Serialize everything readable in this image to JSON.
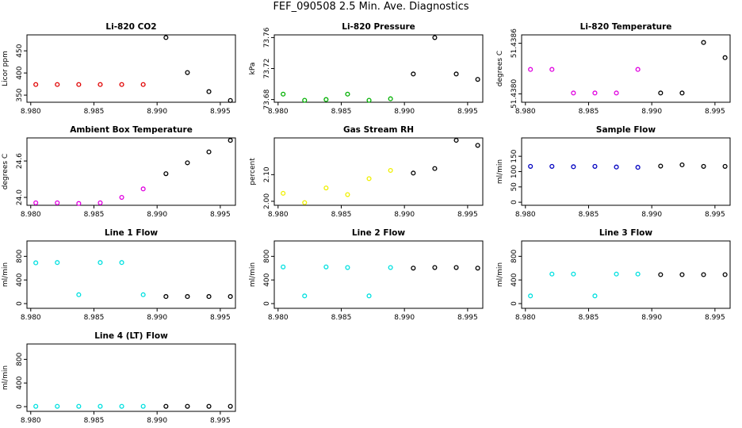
{
  "title": "FEF_090508  2.5 Min. Ave. Diagnostics",
  "colors": {
    "black": "#000000",
    "red": "#e00000",
    "green": "#00b000",
    "magenta": "#e000e0",
    "yellow": "#f0f000",
    "blue": "#0000c0",
    "cyan": "#00e0e0"
  },
  "chart_data": [
    {
      "type": "scatter",
      "title": "Li-820 CO2",
      "ylabel": "Licor ppm",
      "x": [
        8.9804,
        8.9821,
        8.9838,
        8.9855,
        8.9872,
        8.9889,
        8.9907,
        8.9924,
        8.9941,
        8.9958
      ],
      "xlim": [
        8.9797,
        8.9962
      ],
      "x_ticks": [
        "8.980",
        "8.985",
        "8.990",
        "8.995"
      ],
      "x_tick_values": [
        8.98,
        8.985,
        8.99,
        8.995
      ],
      "ylim": [
        334,
        486
      ],
      "y_ticks": [
        "350",
        "400",
        "450"
      ],
      "y_tick_values": [
        350,
        400,
        450
      ],
      "values": [
        374,
        374,
        374,
        374,
        374,
        374,
        480,
        401,
        358,
        338
      ],
      "point_colors": [
        "red",
        "red",
        "red",
        "red",
        "red",
        "red",
        "black",
        "black",
        "black",
        "black"
      ]
    },
    {
      "type": "scatter",
      "title": "Li-820 Pressure",
      "ylabel": "kPa",
      "x": [
        8.9804,
        8.9821,
        8.9838,
        8.9855,
        8.9872,
        8.9889,
        8.9907,
        8.9924,
        8.9941,
        8.9958
      ],
      "xlim": [
        8.9797,
        8.9962
      ],
      "x_ticks": [
        "8.980",
        "8.985",
        "8.990",
        "8.995"
      ],
      "x_tick_values": [
        8.98,
        8.985,
        8.99,
        8.995
      ],
      "ylim": [
        73.6765,
        73.7635
      ],
      "y_ticks": [
        "73.68",
        "73.72",
        "73.76"
      ],
      "y_tick_values": [
        73.68,
        73.72,
        73.76
      ],
      "values": [
        73.687,
        73.679,
        73.68,
        73.687,
        73.679,
        73.681,
        73.713,
        73.76,
        73.713,
        73.706
      ],
      "point_colors": [
        "green",
        "green",
        "green",
        "green",
        "green",
        "green",
        "black",
        "black",
        "black",
        "black"
      ]
    },
    {
      "type": "scatter",
      "title": "Li-820 Temperature",
      "ylabel": "degrees C",
      "x": [
        8.9804,
        8.9821,
        8.9838,
        8.9855,
        8.9872,
        8.9889,
        8.9907,
        8.9924,
        8.9941,
        8.9958
      ],
      "xlim": [
        8.9797,
        8.9962
      ],
      "x_ticks": [
        "8.980",
        "8.985",
        "8.990",
        "8.995"
      ],
      "x_tick_values": [
        8.98,
        8.985,
        8.99,
        8.995
      ],
      "ylim": [
        51.4379,
        51.4387
      ],
      "y_ticks": [
        "51.4380",
        "51.4386"
      ],
      "y_tick_values": [
        51.438,
        51.4386
      ],
      "values": [
        51.43829,
        51.43829,
        51.43801,
        51.43801,
        51.43801,
        51.43829,
        51.43801,
        51.43801,
        51.43861,
        51.43843
      ],
      "point_colors": [
        "magenta",
        "magenta",
        "magenta",
        "magenta",
        "magenta",
        "magenta",
        "black",
        "black",
        "black",
        "black"
      ]
    },
    {
      "type": "scatter",
      "title": "Ambient Box Temperature",
      "ylabel": "degrees C",
      "x": [
        8.9804,
        8.9821,
        8.9838,
        8.9855,
        8.9872,
        8.9889,
        8.9907,
        8.9924,
        8.9941,
        8.9958
      ],
      "xlim": [
        8.9797,
        8.9962
      ],
      "x_ticks": [
        "8.980",
        "8.985",
        "8.990",
        "8.995"
      ],
      "x_tick_values": [
        8.98,
        8.985,
        8.99,
        8.995
      ],
      "ylim": [
        23.87,
        24.98
      ],
      "y_ticks": [
        "24.0",
        "24.6"
      ],
      "y_tick_values": [
        24.0,
        24.6
      ],
      "values": [
        23.91,
        23.91,
        23.9,
        23.91,
        24.0,
        24.14,
        24.39,
        24.57,
        24.75,
        24.94
      ],
      "point_colors": [
        "magenta",
        "magenta",
        "magenta",
        "magenta",
        "magenta",
        "magenta",
        "black",
        "black",
        "black",
        "black"
      ]
    },
    {
      "type": "scatter",
      "title": "Gas Stream RH",
      "ylabel": "percent",
      "x": [
        8.9804,
        8.9821,
        8.9838,
        8.9855,
        8.9872,
        8.9889,
        8.9907,
        8.9924,
        8.9941,
        8.9958
      ],
      "xlim": [
        8.9797,
        8.9962
      ],
      "x_ticks": [
        "8.980",
        "8.985",
        "8.990",
        "8.995"
      ],
      "x_tick_values": [
        8.98,
        8.985,
        8.99,
        8.995
      ],
      "ylim": [
        1.985,
        2.238
      ],
      "y_ticks": [
        "2.00",
        "2.10"
      ],
      "y_tick_values": [
        2.0,
        2.1
      ],
      "values": [
        2.03,
        1.995,
        2.05,
        2.025,
        2.085,
        2.116,
        2.106,
        2.123,
        2.229,
        2.21
      ],
      "point_colors": [
        "yellow",
        "yellow",
        "yellow",
        "yellow",
        "yellow",
        "yellow",
        "black",
        "black",
        "black",
        "black"
      ]
    },
    {
      "type": "scatter",
      "title": "Sample Flow",
      "ylabel": "ml/min",
      "x": [
        8.9804,
        8.9821,
        8.9838,
        8.9855,
        8.9872,
        8.9889,
        8.9907,
        8.9924,
        8.9941,
        8.9958
      ],
      "xlim": [
        8.9797,
        8.9962
      ],
      "x_ticks": [
        "8.980",
        "8.985",
        "8.990",
        "8.995"
      ],
      "x_tick_values": [
        8.98,
        8.985,
        8.99,
        8.995
      ],
      "ylim": [
        -10,
        210
      ],
      "y_ticks": [
        "0",
        "50",
        "100",
        "150"
      ],
      "y_tick_values": [
        0,
        50,
        100,
        150
      ],
      "values": [
        117,
        117,
        116,
        117,
        115,
        114,
        118,
        122,
        117,
        117
      ],
      "point_colors": [
        "blue",
        "blue",
        "blue",
        "blue",
        "blue",
        "blue",
        "black",
        "black",
        "black",
        "black"
      ]
    },
    {
      "type": "scatter",
      "title": "Line 1 Flow",
      "ylabel": "ml/min",
      "x": [
        8.9804,
        8.9821,
        8.9838,
        8.9855,
        8.9872,
        8.9889,
        8.9907,
        8.9924,
        8.9941,
        8.9958
      ],
      "xlim": [
        8.9797,
        8.9962
      ],
      "x_ticks": [
        "8.980",
        "8.985",
        "8.990",
        "8.995"
      ],
      "x_tick_values": [
        8.98,
        8.985,
        8.99,
        8.995
      ],
      "ylim": [
        -80,
        1060
      ],
      "y_ticks": [
        "0",
        "400",
        "800"
      ],
      "y_tick_values": [
        0,
        400,
        800
      ],
      "values": [
        690,
        695,
        150,
        695,
        695,
        150,
        120,
        120,
        120,
        120
      ],
      "point_colors": [
        "cyan",
        "cyan",
        "cyan",
        "cyan",
        "cyan",
        "cyan",
        "black",
        "black",
        "black",
        "black"
      ]
    },
    {
      "type": "scatter",
      "title": "Line 2 Flow",
      "ylabel": "ml/min",
      "x": [
        8.9804,
        8.9821,
        8.9838,
        8.9855,
        8.9872,
        8.9889,
        8.9907,
        8.9924,
        8.9941,
        8.9958
      ],
      "xlim": [
        8.9797,
        8.9962
      ],
      "x_ticks": [
        "8.980",
        "8.985",
        "8.990",
        "8.995"
      ],
      "x_tick_values": [
        8.98,
        8.985,
        8.99,
        8.995
      ],
      "ylim": [
        -80,
        1060
      ],
      "y_ticks": [
        "0",
        "400",
        "800"
      ],
      "y_tick_values": [
        0,
        400,
        800
      ],
      "values": [
        620,
        130,
        620,
        610,
        130,
        610,
        600,
        610,
        610,
        600
      ],
      "point_colors": [
        "cyan",
        "cyan",
        "cyan",
        "cyan",
        "cyan",
        "cyan",
        "black",
        "black",
        "black",
        "black"
      ]
    },
    {
      "type": "scatter",
      "title": "Line 3 Flow",
      "ylabel": "ml/min",
      "x": [
        8.9804,
        8.9821,
        8.9838,
        8.9855,
        8.9872,
        8.9889,
        8.9907,
        8.9924,
        8.9941,
        8.9958
      ],
      "xlim": [
        8.9797,
        8.9962
      ],
      "x_ticks": [
        "8.980",
        "8.985",
        "8.990",
        "8.995"
      ],
      "x_tick_values": [
        8.98,
        8.985,
        8.99,
        8.995
      ],
      "ylim": [
        -80,
        1060
      ],
      "y_ticks": [
        "0",
        "400",
        "800"
      ],
      "y_tick_values": [
        0,
        400,
        800
      ],
      "values": [
        130,
        500,
        500,
        130,
        500,
        500,
        490,
        490,
        490,
        490
      ],
      "point_colors": [
        "cyan",
        "cyan",
        "cyan",
        "cyan",
        "cyan",
        "cyan",
        "black",
        "black",
        "black",
        "black"
      ]
    },
    {
      "type": "scatter",
      "title": "Line 4 (LT) Flow",
      "ylabel": "ml/min",
      "x": [
        8.9804,
        8.9821,
        8.9838,
        8.9855,
        8.9872,
        8.9889,
        8.9907,
        8.9924,
        8.9941,
        8.9958
      ],
      "xlim": [
        8.9797,
        8.9962
      ],
      "x_ticks": [
        "8.980",
        "8.985",
        "8.990",
        "8.995"
      ],
      "x_tick_values": [
        8.98,
        8.985,
        8.99,
        8.995
      ],
      "ylim": [
        -80,
        1060
      ],
      "y_ticks": [
        "0",
        "400",
        "800"
      ],
      "y_tick_values": [
        0,
        400,
        800
      ],
      "values": [
        5,
        5,
        5,
        5,
        5,
        5,
        5,
        5,
        5,
        5
      ],
      "point_colors": [
        "cyan",
        "cyan",
        "cyan",
        "cyan",
        "cyan",
        "cyan",
        "black",
        "black",
        "black",
        "black"
      ]
    }
  ]
}
